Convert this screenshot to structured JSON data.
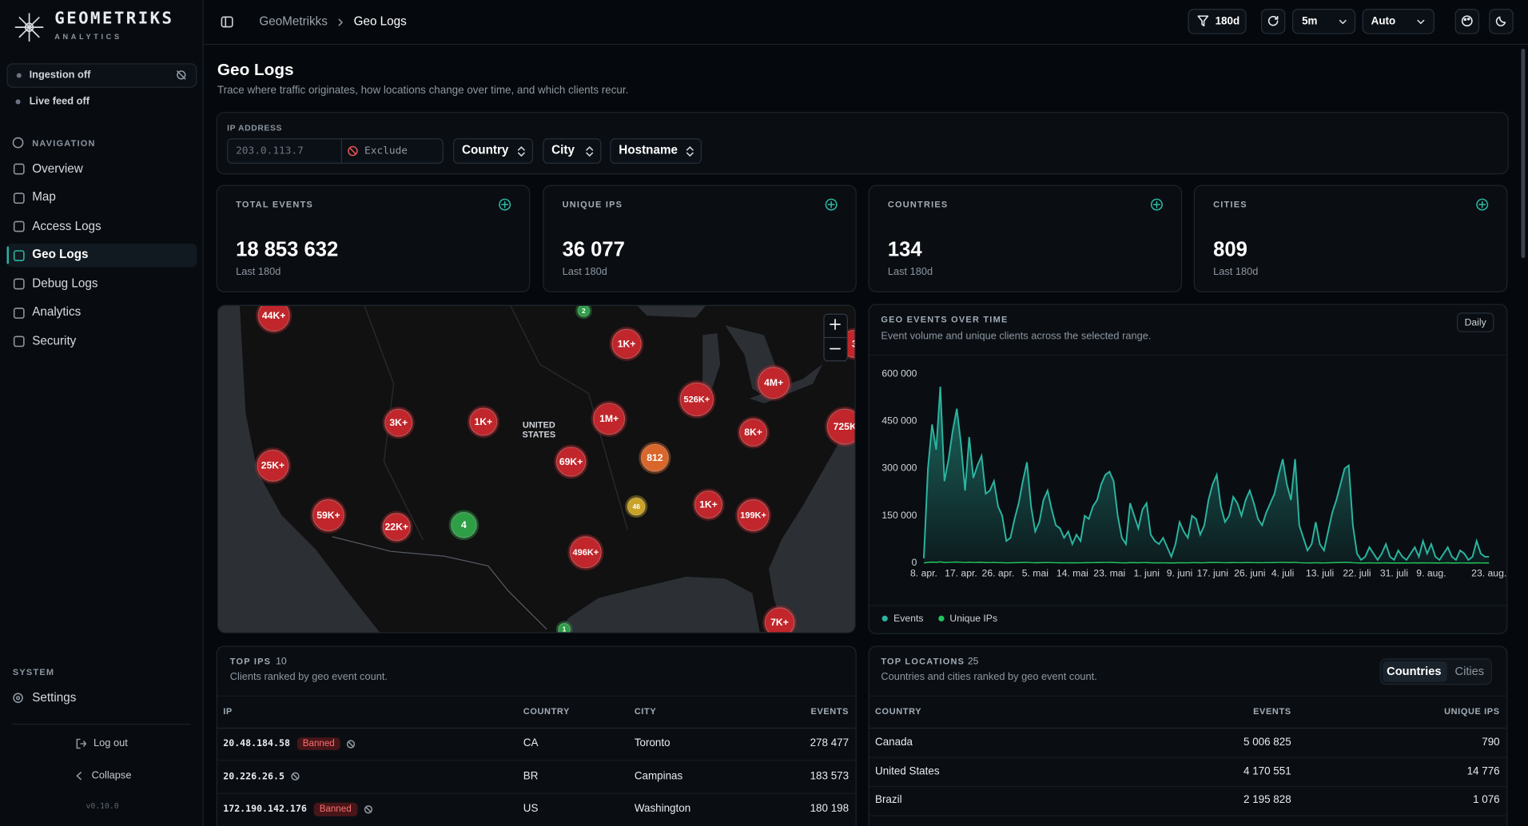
{
  "sidebar": {
    "brand": "GEOMETRIKS",
    "brand_sub": "ANALYTICS",
    "ingestion": "Ingestion off",
    "live_feed": "Live feed off",
    "nav_heading": "NAVIGATION",
    "nav": [
      {
        "label": "Overview"
      },
      {
        "label": "Map"
      },
      {
        "label": "Access Logs"
      },
      {
        "label": "Geo Logs",
        "active": true
      },
      {
        "label": "Debug Logs"
      },
      {
        "label": "Analytics"
      },
      {
        "label": "Security"
      }
    ],
    "system_heading": "SYSTEM",
    "settings": "Settings",
    "logout": "Log out",
    "collapse": "Collapse",
    "version": "v0.10.0"
  },
  "topbar": {
    "breadcrumb": [
      "GeoMetrikks",
      "Geo Logs"
    ],
    "range": "180d",
    "refresh_interval": "5m",
    "mode": "Auto"
  },
  "header": {
    "title": "Geo Logs",
    "subtitle": "Trace where traffic originates, how locations change over time, and which clients recur."
  },
  "filters": {
    "ip_label": "IP ADDRESS",
    "ip_placeholder": "203.0.113.7",
    "exclude": "Exclude",
    "selects": [
      "Country",
      "City",
      "Hostname"
    ]
  },
  "stats": [
    {
      "label": "TOTAL EVENTS",
      "value": "18 853 632",
      "note": "Last 180d"
    },
    {
      "label": "UNIQUE IPS",
      "value": "36 077",
      "note": "Last 180d"
    },
    {
      "label": "COUNTRIES",
      "value": "134",
      "note": "Last 180d"
    },
    {
      "label": "CITIES",
      "value": "809",
      "note": "Last 180d"
    }
  ],
  "map": {
    "country_label": "UNITED STATES",
    "clusters": [
      {
        "label": "44K+",
        "color": "#c0262b"
      },
      {
        "label": "2",
        "color": "#2e9e47"
      },
      {
        "label": "1K+",
        "color": "#c0262b"
      },
      {
        "label": "3",
        "color": "#c0262b"
      },
      {
        "label": "4M+",
        "color": "#c0262b"
      },
      {
        "label": "526K+",
        "color": "#c0262b"
      },
      {
        "label": "3K+",
        "color": "#c0262b"
      },
      {
        "label": "1K+",
        "color": "#c0262b"
      },
      {
        "label": "1M+",
        "color": "#c0262b"
      },
      {
        "label": "725K",
        "color": "#c0262b"
      },
      {
        "label": "8K+",
        "color": "#c0262b"
      },
      {
        "label": "25K+",
        "color": "#c0262b"
      },
      {
        "label": "812",
        "color": "#d9662b"
      },
      {
        "label": "69K+",
        "color": "#c0262b"
      },
      {
        "label": "46",
        "color": "#c9a227"
      },
      {
        "label": "1K+",
        "color": "#c0262b"
      },
      {
        "label": "199K+",
        "color": "#c0262b"
      },
      {
        "label": "59K+",
        "color": "#c0262b"
      },
      {
        "label": "22K+",
        "color": "#c0262b"
      },
      {
        "label": "4",
        "color": "#2e9e47"
      },
      {
        "label": "496K+",
        "color": "#c0262b"
      },
      {
        "label": "7K+",
        "color": "#c0262b"
      },
      {
        "label": "1",
        "color": "#2e9e47"
      }
    ]
  },
  "chart_data": {
    "type": "area",
    "title": "GEO EVENTS OVER TIME",
    "subtitle": "Event volume and unique clients across the selected range.",
    "granularity": "Daily",
    "categories": [
      "8. apr.",
      null,
      null,
      null,
      null,
      null,
      null,
      null,
      null,
      "17. apr.",
      null,
      null,
      null,
      null,
      null,
      null,
      null,
      null,
      "26. apr.",
      null,
      null,
      null,
      null,
      null,
      null,
      null,
      null,
      "5. mai",
      null,
      null,
      null,
      null,
      null,
      null,
      null,
      null,
      "14. mai",
      null,
      null,
      null,
      null,
      null,
      null,
      null,
      null,
      "23. mai",
      null,
      null,
      null,
      null,
      null,
      null,
      null,
      null,
      "1. juni",
      null,
      null,
      null,
      null,
      null,
      null,
      null,
      "9. juni",
      null,
      null,
      null,
      null,
      null,
      null,
      null,
      "17. juni",
      null,
      null,
      null,
      null,
      null,
      null,
      null,
      null,
      "26. juni",
      null,
      null,
      null,
      null,
      null,
      null,
      null,
      "4. juli",
      null,
      null,
      null,
      null,
      null,
      null,
      null,
      null,
      "13. juli",
      null,
      null,
      null,
      null,
      null,
      null,
      null,
      null,
      "22. juli",
      null,
      null,
      null,
      null,
      null,
      null,
      null,
      null,
      "31. juli",
      null,
      null,
      null,
      null,
      null,
      null,
      null,
      null,
      "9. aug.",
      null,
      null,
      null,
      null,
      null,
      null,
      null,
      null,
      null,
      null,
      null,
      null,
      null,
      "23. aug."
    ],
    "series": [
      {
        "name": "Events",
        "color": "#2bb5a0",
        "values": [
          15000,
          300000,
          440000,
          360000,
          560000,
          260000,
          330000,
          420000,
          490000,
          380000,
          230000,
          400000,
          270000,
          310000,
          340000,
          220000,
          230000,
          260000,
          180000,
          150000,
          70000,
          80000,
          140000,
          190000,
          260000,
          320000,
          180000,
          100000,
          130000,
          200000,
          230000,
          170000,
          120000,
          110000,
          80000,
          100000,
          60000,
          90000,
          70000,
          150000,
          140000,
          180000,
          200000,
          250000,
          280000,
          290000,
          260000,
          150000,
          80000,
          60000,
          190000,
          150000,
          110000,
          170000,
          190000,
          90000,
          70000,
          60000,
          80000,
          50000,
          20000,
          60000,
          130000,
          100000,
          80000,
          150000,
          140000,
          90000,
          120000,
          200000,
          250000,
          280000,
          180000,
          130000,
          150000,
          210000,
          190000,
          150000,
          200000,
          230000,
          190000,
          140000,
          120000,
          160000,
          190000,
          220000,
          280000,
          330000,
          250000,
          200000,
          330000,
          120000,
          80000,
          40000,
          60000,
          130000,
          60000,
          40000,
          100000,
          160000,
          200000,
          250000,
          300000,
          310000,
          120000,
          30000,
          10000,
          20000,
          50000,
          30000,
          10000,
          30000,
          60000,
          20000,
          10000,
          40000,
          20000,
          10000,
          30000,
          50000,
          20000,
          70000,
          30000,
          60000,
          20000,
          10000,
          30000,
          50000,
          20000,
          10000,
          40000,
          30000,
          10000,
          20000,
          70000,
          30000,
          20000,
          20000
        ]
      },
      {
        "name": "Unique IPs",
        "color": "#22c55e",
        "values": [
          300,
          2100,
          2900,
          2400,
          3600,
          1800,
          2200,
          2800,
          3100,
          2500,
          1600,
          2700,
          1900,
          2100,
          2300,
          1500,
          1600,
          1800,
          1300,
          1100,
          600,
          700,
          1000,
          1400,
          1800,
          2200,
          1300,
          800,
          1000,
          1400,
          1600,
          1200,
          900,
          800,
          600,
          700,
          500,
          700,
          600,
          1100,
          1000,
          1300,
          1400,
          1700,
          1900,
          2000,
          1800,
          1100,
          600,
          500,
          1300,
          1100,
          800,
          1200,
          1300,
          700,
          500,
          500,
          600,
          400,
          200,
          500,
          900,
          700,
          600,
          1100,
          1000,
          700,
          900,
          1400,
          1700,
          1900,
          1300,
          900,
          1100,
          1500,
          1300,
          1100,
          1400,
          1600,
          1300,
          1000,
          900,
          1200,
          1300,
          1500,
          1900,
          2200,
          1700,
          1400,
          2200,
          900,
          600,
          300,
          500,
          900,
          500,
          300,
          700,
          1100,
          1400,
          1700,
          2000,
          2100,
          900,
          300,
          100,
          200,
          400,
          300,
          100,
          300,
          500,
          200,
          100,
          300,
          200,
          100,
          300,
          400,
          200,
          500,
          300,
          400,
          200,
          100,
          300,
          400,
          200,
          100,
          300,
          300,
          100,
          200,
          500,
          300,
          200,
          200
        ]
      }
    ],
    "ylim": [
      0,
      600000
    ],
    "yticks": [
      0,
      {
        "value": 150000,
        "label": "150 000"
      },
      {
        "value": 300000,
        "label": "300 000"
      },
      {
        "value": 450000,
        "label": "450 000"
      },
      {
        "value": 600000,
        "label": "600 000"
      }
    ]
  },
  "top_ips": {
    "title": "TOP IPS",
    "count": 10,
    "subtitle": "Clients ranked by geo event count.",
    "columns": [
      "IP",
      "COUNTRY",
      "CITY",
      "EVENTS"
    ],
    "rows": [
      {
        "ip": "20.48.184.58",
        "badge": "Banned",
        "country": "CA",
        "city": "Toronto",
        "events": "278 477"
      },
      {
        "ip": "20.226.26.5",
        "country": "BR",
        "city": "Campinas",
        "events": "183 573"
      },
      {
        "ip": "172.190.142.176",
        "badge": "Banned",
        "country": "US",
        "city": "Washington",
        "events": "180 198"
      }
    ]
  },
  "top_locations": {
    "title": "TOP LOCATIONS",
    "count": 25,
    "subtitle": "Countries and cities ranked by geo event count.",
    "tabs": [
      "Countries",
      "Cities"
    ],
    "columns": [
      "COUNTRY",
      "EVENTS",
      "UNIQUE IPS"
    ],
    "rows": [
      [
        "Canada",
        "5 006 825",
        "790"
      ],
      [
        "United States",
        "4 170 551",
        "14 776"
      ],
      [
        "Brazil",
        "2 195 828",
        "1 076"
      ]
    ]
  }
}
